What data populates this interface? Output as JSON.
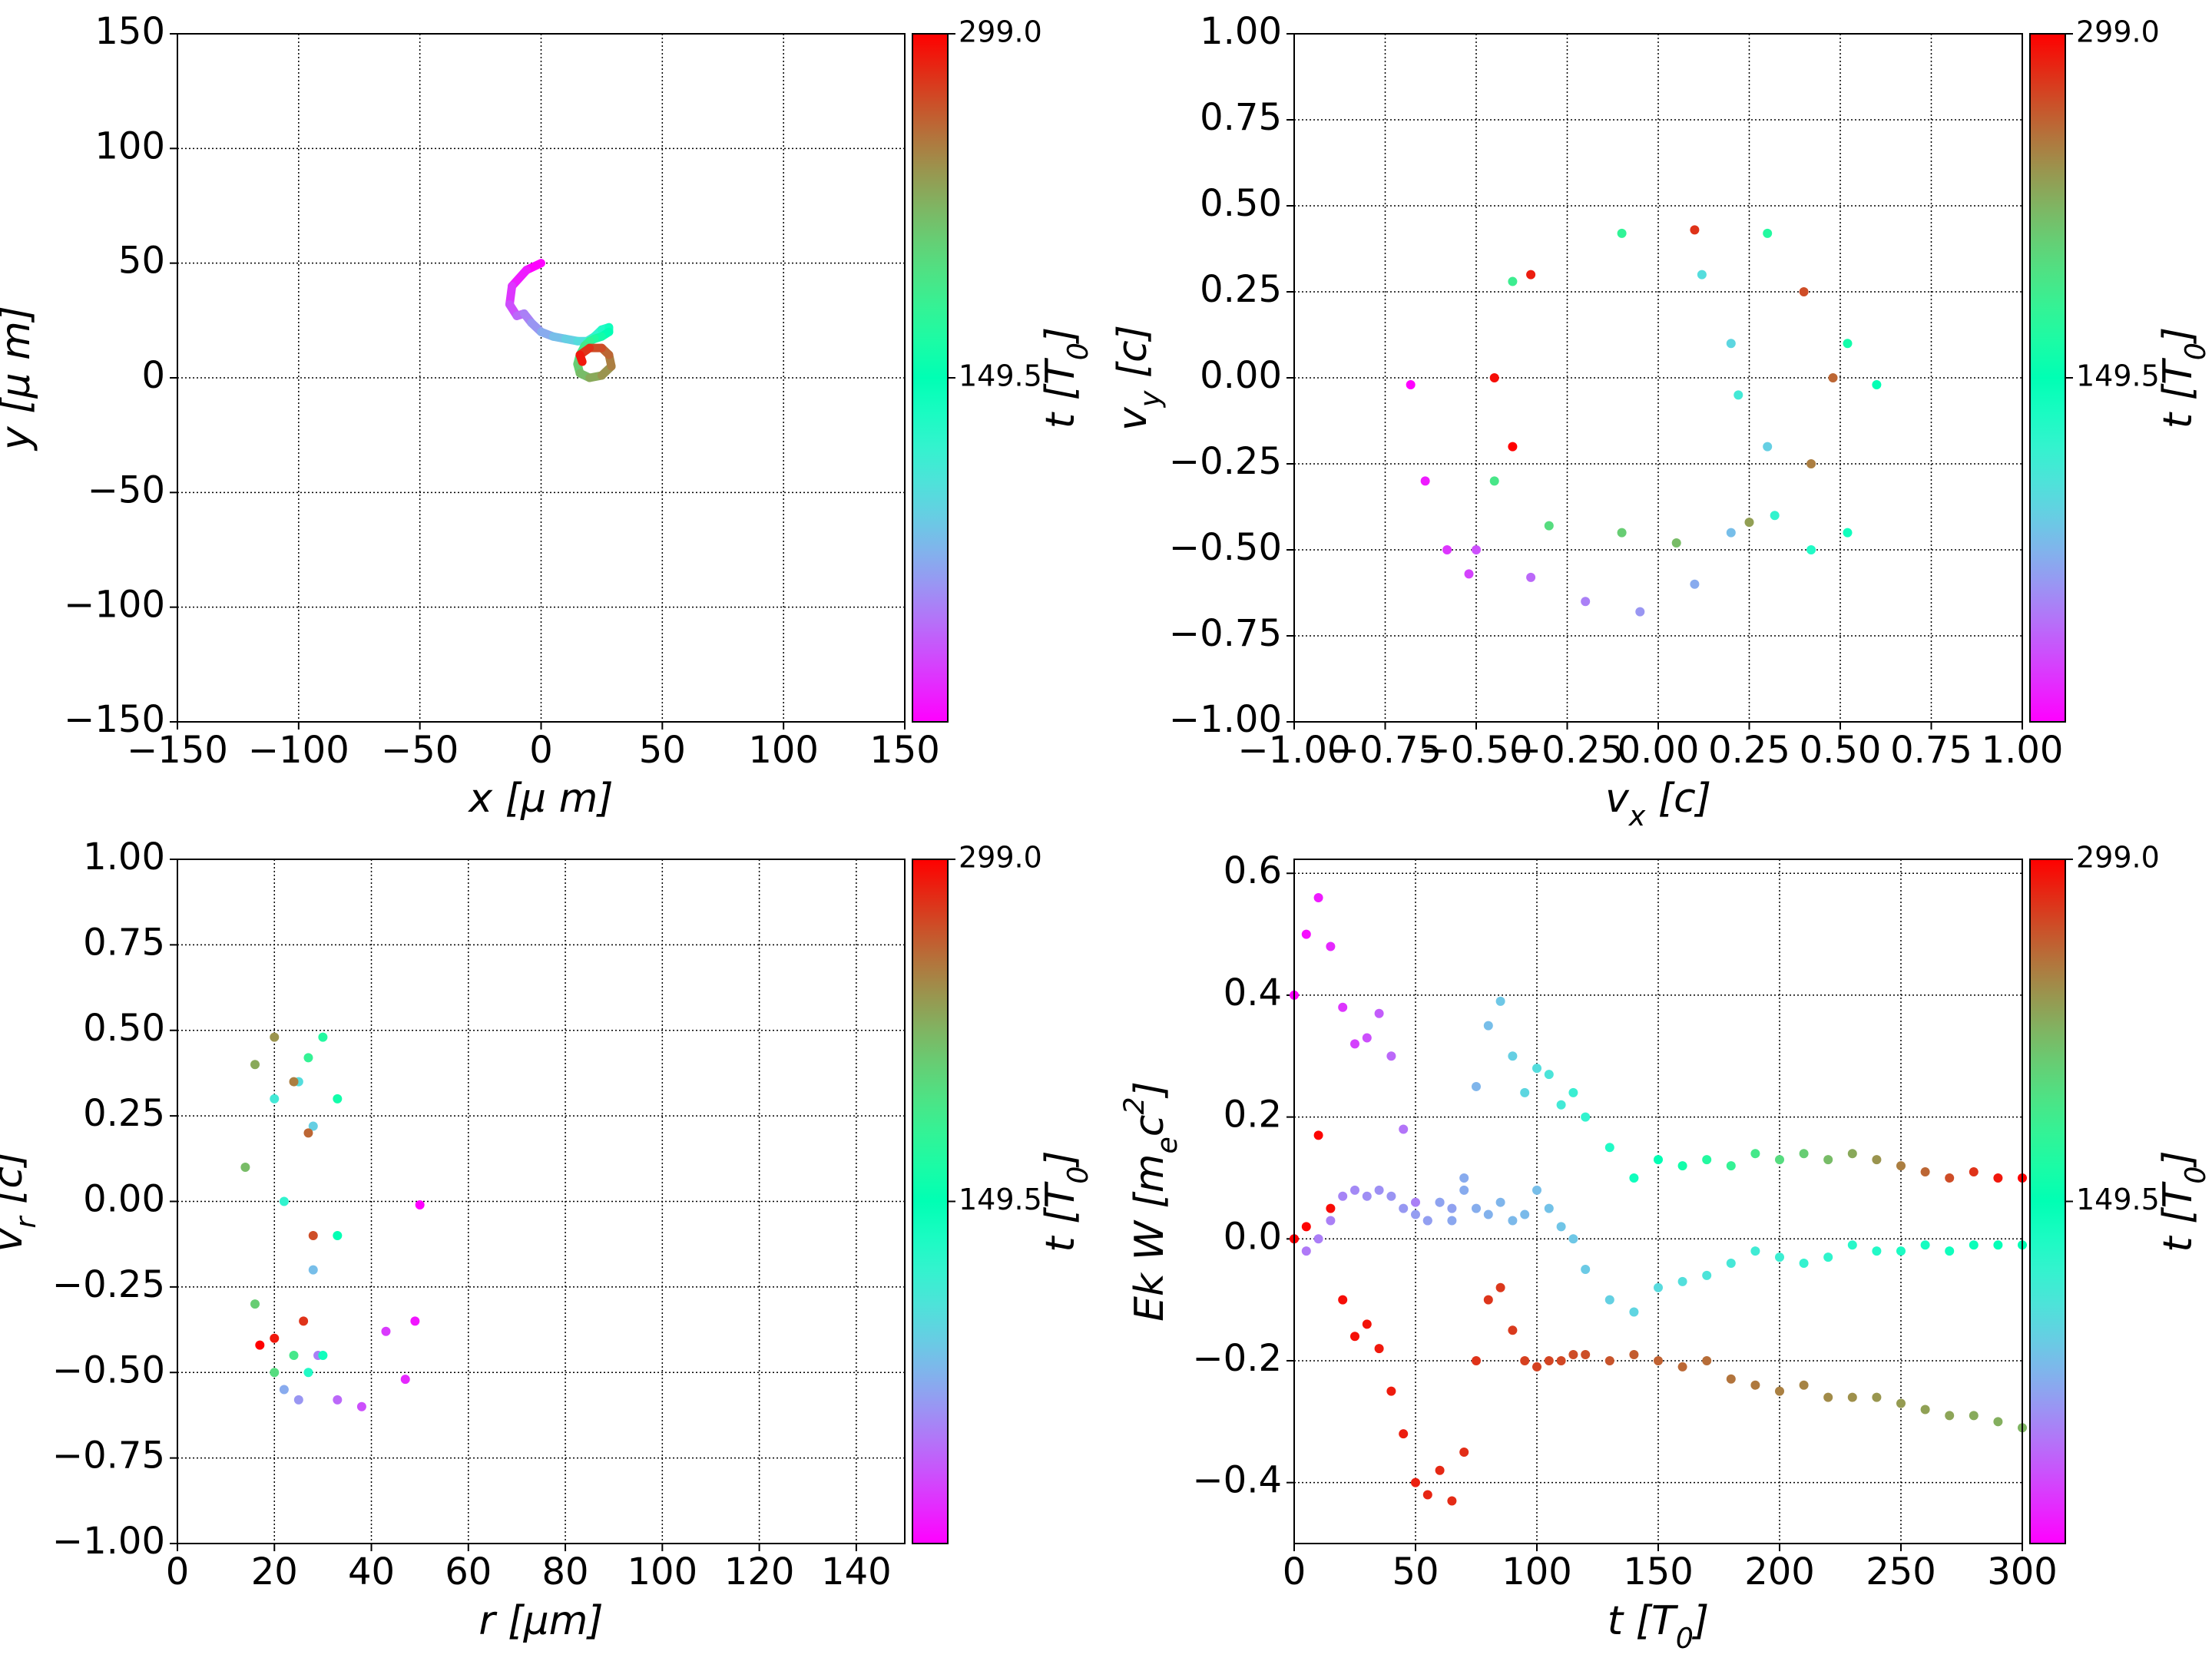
{
  "chart_data": [
    {
      "type": "scatter",
      "mode": "lines",
      "grid": true,
      "cmap": "rainbow",
      "xlabel": [
        {
          "text": "x  [μ m]"
        }
      ],
      "ylabel": [
        {
          "text": "y  [μ m]"
        }
      ],
      "xlim": [
        -150,
        150
      ],
      "ylim": [
        -150,
        150
      ],
      "xticks": [
        {
          "value": -150,
          "label": "−150"
        },
        {
          "value": -100,
          "label": "−100"
        },
        {
          "value": -50,
          "label": "−50"
        },
        0,
        50,
        100,
        150
      ],
      "yticks": [
        {
          "value": -150,
          "label": "−150"
        },
        {
          "value": -100,
          "label": "−100"
        },
        {
          "value": -50,
          "label": "−50"
        },
        0,
        50,
        100,
        150
      ],
      "colorbar": {
        "clim": [
          0,
          299
        ],
        "ticks": [
          149.5,
          {
            "value": 299,
            "label": "299.0"
          }
        ],
        "label": [
          {
            "text": "t [T"
          },
          {
            "text": "0",
            "sub": true
          },
          {
            "text": "]"
          }
        ]
      },
      "series": [
        {
          "color_by": "t",
          "t": [
            0,
            10,
            20,
            30,
            40,
            50,
            60,
            70,
            80,
            90,
            100,
            110,
            120,
            130,
            140,
            150,
            160,
            170,
            180,
            190,
            200,
            210,
            220,
            230,
            240,
            250,
            260,
            270,
            280,
            290,
            299
          ],
          "x": [
            0,
            -6,
            -12,
            -13,
            -10,
            -7,
            -4,
            0,
            5,
            10,
            15,
            19,
            22,
            25,
            28,
            28,
            25,
            22,
            20,
            18,
            16,
            15,
            16,
            20,
            25,
            29,
            28,
            25,
            20,
            16,
            17
          ],
          "y": [
            50,
            47,
            40,
            32,
            27,
            28,
            24,
            20,
            18,
            17,
            16,
            16,
            18,
            21,
            22,
            20,
            18,
            17,
            16,
            14,
            10,
            6,
            2,
            0,
            1,
            5,
            10,
            13,
            13,
            10,
            7
          ]
        }
      ]
    },
    {
      "type": "scatter",
      "mode": "markers",
      "grid": true,
      "cmap": "rainbow",
      "xlabel": [
        {
          "text": "v"
        },
        {
          "text": "x",
          "sub": true
        },
        {
          "text": " [c]"
        }
      ],
      "ylabel": [
        {
          "text": "v"
        },
        {
          "text": "y",
          "sub": true
        },
        {
          "text": " [c]"
        }
      ],
      "xlim": [
        -1,
        1
      ],
      "ylim": [
        -1,
        1
      ],
      "xticks": [
        {
          "value": -1,
          "label": "−1.00"
        },
        {
          "value": -0.75,
          "label": "−0.75"
        },
        {
          "value": -0.5,
          "label": "−0.50"
        },
        {
          "value": -0.25,
          "label": "−0.25"
        },
        {
          "value": 0,
          "label": "0.00"
        },
        0.25,
        {
          "value": 0.5,
          "label": "0.50"
        },
        0.75,
        {
          "value": 1,
          "label": "1.00"
        }
      ],
      "yticks": [
        {
          "value": -1,
          "label": "−1.00"
        },
        {
          "value": -0.75,
          "label": "−0.75"
        },
        {
          "value": -0.5,
          "label": "−0.50"
        },
        {
          "value": -0.25,
          "label": "−0.25"
        },
        {
          "value": 0,
          "label": "0.00"
        },
        0.25,
        {
          "value": 0.5,
          "label": "0.50"
        },
        0.75,
        {
          "value": 1,
          "label": "1.00"
        }
      ],
      "colorbar": {
        "clim": [
          0,
          299
        ],
        "ticks": [
          149.5,
          {
            "value": 299,
            "label": "299.0"
          }
        ],
        "label": [
          {
            "text": "t [T"
          },
          {
            "text": "0",
            "sub": true
          },
          {
            "text": "]"
          }
        ]
      },
      "series": [
        {
          "color_by": "t",
          "t": [
            0,
            10,
            20,
            25,
            30,
            40,
            50,
            60,
            70,
            80,
            90,
            95,
            100,
            110,
            120,
            130,
            140,
            150,
            160,
            170,
            178,
            185,
            192,
            200,
            210,
            220,
            235,
            250,
            260,
            270,
            280,
            288,
            294,
            299
          ],
          "x": [
            -0.68,
            -0.64,
            -0.58,
            -0.52,
            -0.5,
            -0.35,
            -0.2,
            -0.05,
            0.1,
            0.2,
            0.3,
            0.2,
            0.12,
            0.22,
            0.32,
            0.42,
            0.52,
            0.6,
            0.52,
            0.3,
            -0.1,
            -0.4,
            -0.45,
            -0.3,
            -0.1,
            0.05,
            0.25,
            0.42,
            0.48,
            0.4,
            0.1,
            -0.35,
            -0.45,
            -0.4
          ],
          "y": [
            -0.02,
            -0.3,
            -0.5,
            -0.57,
            -0.5,
            -0.58,
            -0.65,
            -0.68,
            -0.6,
            -0.45,
            -0.2,
            0.1,
            0.3,
            -0.05,
            -0.4,
            -0.5,
            -0.45,
            -0.02,
            0.1,
            0.42,
            0.42,
            0.28,
            -0.3,
            -0.43,
            -0.45,
            -0.48,
            -0.42,
            -0.25,
            0,
            0.25,
            0.43,
            0.3,
            0,
            -0.2
          ]
        }
      ]
    },
    {
      "type": "scatter",
      "mode": "markers",
      "grid": true,
      "cmap": "rainbow",
      "xlabel": [
        {
          "text": "r [μm]"
        }
      ],
      "ylabel": [
        {
          "text": "v"
        },
        {
          "text": "r",
          "sub": true
        },
        {
          "text": " [c]"
        }
      ],
      "xlim": [
        0,
        150
      ],
      "ylim": [
        -1,
        1
      ],
      "xticks": [
        0,
        20,
        40,
        60,
        80,
        100,
        120,
        140
      ],
      "yticks": [
        {
          "value": -1,
          "label": "−1.00"
        },
        {
          "value": -0.75,
          "label": "−0.75"
        },
        {
          "value": -0.5,
          "label": "−0.50"
        },
        {
          "value": -0.25,
          "label": "−0.25"
        },
        {
          "value": 0,
          "label": "0.00"
        },
        0.25,
        {
          "value": 0.5,
          "label": "0.50"
        },
        0.75,
        {
          "value": 1,
          "label": "1.00"
        }
      ],
      "colorbar": {
        "clim": [
          0,
          299
        ],
        "ticks": [
          149.5,
          {
            "value": 299,
            "label": "299.0"
          }
        ],
        "label": [
          {
            "text": "t [T"
          },
          {
            "text": "0",
            "sub": true
          },
          {
            "text": "]"
          }
        ]
      },
      "series": [
        {
          "color_by": "t",
          "t": [
            0,
            8,
            15,
            22,
            30,
            40,
            50,
            60,
            70,
            80,
            90,
            100,
            110,
            120,
            130,
            140,
            150,
            160,
            170,
            180,
            190,
            200,
            210,
            220,
            230,
            240,
            250,
            260,
            270,
            280,
            290,
            299
          ],
          "x": [
            50,
            49,
            47,
            43,
            38,
            33,
            29,
            25,
            22,
            28,
            28,
            25,
            20,
            22,
            27,
            30,
            33,
            33,
            30,
            27,
            24,
            20,
            16,
            14,
            16,
            20,
            24,
            27,
            28,
            26,
            20,
            17
          ],
          "y": [
            -0.01,
            -0.35,
            -0.52,
            -0.38,
            -0.6,
            -0.58,
            -0.45,
            -0.58,
            -0.55,
            -0.2,
            0.22,
            0.35,
            0.3,
            0,
            -0.5,
            -0.45,
            -0.1,
            0.3,
            0.48,
            0.42,
            -0.45,
            -0.5,
            -0.3,
            0.1,
            0.4,
            0.48,
            0.35,
            0.2,
            -0.1,
            -0.35,
            -0.4,
            -0.42
          ]
        }
      ]
    },
    {
      "type": "scatter",
      "mode": "markers",
      "grid": true,
      "cmap": "rainbow",
      "xlabel": [
        {
          "text": "t [T"
        },
        {
          "text": "0",
          "sub": true
        },
        {
          "text": "]"
        }
      ],
      "ylabel": [
        {
          "text": "Ek W [m"
        },
        {
          "text": "e",
          "sub": true
        },
        {
          "text": "c"
        },
        {
          "text": "2",
          "sup": true
        },
        {
          "text": "]"
        }
      ],
      "xlim": [
        0,
        300
      ],
      "ylim": [
        -0.5,
        0.623
      ],
      "xticks": [
        0,
        50,
        100,
        150,
        200,
        250,
        300
      ],
      "yticks": [
        {
          "value": -0.4,
          "label": "−0.4"
        },
        {
          "value": -0.2,
          "label": "−0.2"
        },
        {
          "value": 0,
          "label": "0.0"
        },
        0.2,
        0.4,
        0.6
      ],
      "colorbar": {
        "clim": [
          0,
          299
        ],
        "ticks": [
          149.5,
          {
            "value": 299,
            "label": "299.0"
          }
        ],
        "label": [
          {
            "text": "t [T"
          },
          {
            "text": "0",
            "sub": true
          },
          {
            "text": "]"
          }
        ]
      },
      "x": [
        0,
        5,
        10,
        15,
        20,
        25,
        30,
        35,
        40,
        45,
        50,
        55,
        60,
        65,
        70,
        75,
        80,
        85,
        90,
        95,
        100,
        105,
        110,
        115,
        120,
        130,
        140,
        150,
        160,
        170,
        180,
        190,
        200,
        210,
        220,
        230,
        240,
        250,
        260,
        270,
        280,
        290,
        300
      ],
      "series": [
        {
          "color_by": "x",
          "values": [
            0.4,
            0.5,
            0.56,
            0.48,
            0.38,
            0.32,
            0.33,
            0.37,
            0.3,
            0.18,
            0.06,
            0.03,
            0.06,
            0.05,
            0.1,
            0.25,
            0.35,
            0.39,
            0.3,
            0.24,
            0.28,
            0.27,
            0.22,
            0.24,
            0.2,
            0.15,
            0.1,
            0.13,
            0.12,
            0.13,
            0.12,
            0.14,
            0.13,
            0.14,
            0.13,
            0.14,
            0.13,
            0.12,
            0.11,
            0.1,
            0.11,
            0.1,
            0.1
          ]
        },
        {
          "color_by": "c",
          "values": [
            0,
            -0.02,
            0,
            0.03,
            0.07,
            0.08,
            0.07,
            0.08,
            0.07,
            0.05,
            0.04,
            0.03,
            0.06,
            0.03,
            0.08,
            0.05,
            0.04,
            0.06,
            0.03,
            0.04,
            0.08,
            0.05,
            0.02,
            0,
            -0.05,
            -0.1,
            -0.12,
            -0.08,
            -0.07,
            -0.06,
            -0.04,
            -0.02,
            -0.03,
            -0.04,
            -0.03,
            -0.01,
            -0.02,
            -0.02,
            -0.01,
            -0.02,
            -0.01,
            -0.01,
            -0.01
          ],
          "c": [
            45,
            47,
            49,
            50,
            52,
            54,
            56,
            57,
            59,
            61,
            63,
            64,
            66,
            68,
            70,
            71,
            73,
            75,
            77,
            78,
            80,
            82,
            84,
            85,
            87,
            91,
            94,
            98,
            101,
            105,
            108,
            112,
            115,
            119,
            122,
            126,
            129,
            133,
            136,
            140,
            143,
            147,
            150
          ]
        },
        {
          "color_by": "c",
          "values": [
            0,
            0.02,
            0.17,
            0.05,
            -0.1,
            -0.16,
            -0.14,
            -0.18,
            -0.25,
            -0.32,
            -0.4,
            -0.42,
            -0.38,
            -0.43,
            -0.35,
            -0.2,
            -0.1,
            -0.08,
            -0.15,
            -0.2,
            -0.21,
            -0.2,
            -0.2,
            -0.19,
            -0.19,
            -0.2,
            -0.19,
            -0.2,
            -0.21,
            -0.2,
            -0.23,
            -0.24,
            -0.25,
            -0.24,
            -0.26,
            -0.26,
            -0.26,
            -0.27,
            -0.28,
            -0.29,
            -0.29,
            -0.3,
            -0.31
          ],
          "c": [
            299,
            298,
            297,
            295,
            294,
            293,
            292,
            290,
            289,
            288,
            287,
            285,
            284,
            283,
            282,
            280,
            279,
            278,
            277,
            275,
            274,
            273,
            272,
            270,
            269,
            267,
            264,
            262,
            259,
            257,
            254,
            252,
            249,
            247,
            244,
            242,
            239,
            237,
            234,
            232,
            229,
            227,
            224
          ]
        }
      ]
    }
  ]
}
